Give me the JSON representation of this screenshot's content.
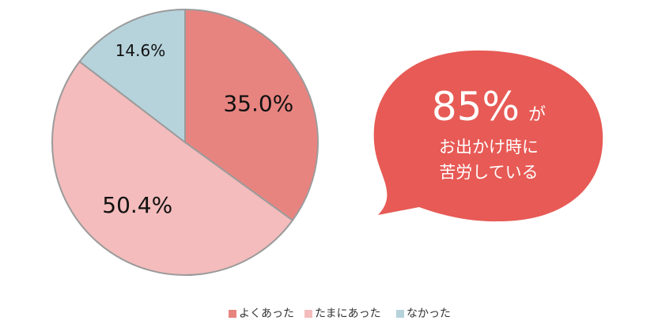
{
  "chart_data": {
    "type": "pie",
    "slices": [
      {
        "label": "よくあった",
        "value": 35.0,
        "display": "35.0%",
        "color": "#e88480"
      },
      {
        "label": "たまにあった",
        "value": 50.4,
        "display": "50.4%",
        "color": "#f4bcbc"
      },
      {
        "label": "なかった",
        "value": 14.6,
        "display": "14.6%",
        "color": "#b6d3dc"
      }
    ],
    "start_angle_deg": 0,
    "direction": "clockwise",
    "slice_border_color": "#9b9b9b",
    "legend_position": "bottom"
  },
  "callout": {
    "headline_number": "85%",
    "headline_suffix": "が",
    "line1": "お出かけ時に",
    "line2": "苦労している",
    "color": "#e75a55"
  }
}
